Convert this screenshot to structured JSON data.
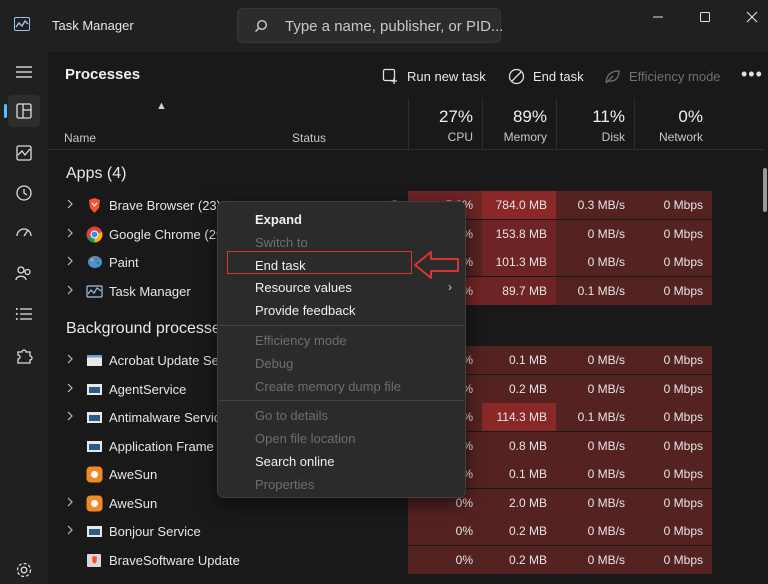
{
  "window": {
    "title": "Task Manager",
    "search_placeholder": "Type a name, publisher, or PID..."
  },
  "toolbar": {
    "page_title": "Processes",
    "run_new_task": "Run new task",
    "end_task": "End task",
    "efficiency_mode": "Efficiency mode",
    "more": "•••"
  },
  "columns": {
    "name": "Name",
    "status": "Status",
    "cpu_pct": "27%",
    "cpu_label": "CPU",
    "memory_pct": "89%",
    "memory_label": "Memory",
    "disk_pct": "11%",
    "disk_label": "Disk",
    "network_pct": "0%",
    "network_label": "Network"
  },
  "sections": {
    "apps": "Apps (4)",
    "background": "Background processes"
  },
  "apps": [
    {
      "name": "Brave Browser (23)",
      "icon": "brave-icon",
      "cpu": "5.2%",
      "memory": "784.0 MB",
      "disk": "0.3 MB/s",
      "network": "0 Mbps"
    },
    {
      "name": "Google Chrome (29)",
      "icon": "chrome-icon",
      "cpu": "2.4%",
      "memory": "153.8 MB",
      "disk": "0 MB/s",
      "network": "0 Mbps"
    },
    {
      "name": "Paint",
      "icon": "paint-icon",
      "cpu": "0.1%",
      "memory": "101.3 MB",
      "disk": "0 MB/s",
      "network": "0 Mbps"
    },
    {
      "name": "Task Manager",
      "icon": "task-manager-icon",
      "cpu": "1.9%",
      "memory": "89.7 MB",
      "disk": "0.1 MB/s",
      "network": "0 Mbps"
    }
  ],
  "background": [
    {
      "name": "Acrobat Update Service (32 bit)",
      "icon": "window-icon",
      "cpu": "0%",
      "memory": "0.1 MB",
      "disk": "0 MB/s",
      "network": "0 Mbps"
    },
    {
      "name": "AgentService",
      "icon": "window-icon",
      "cpu": "0%",
      "memory": "0.2 MB",
      "disk": "0 MB/s",
      "network": "0 Mbps"
    },
    {
      "name": "Antimalware Service Executable",
      "icon": "window-icon",
      "cpu": "0.1%",
      "memory": "114.3 MB",
      "disk": "0.1 MB/s",
      "network": "0 Mbps"
    },
    {
      "name": "Application Frame Host",
      "icon": "window-icon",
      "cpu": "0%",
      "memory": "0.8 MB",
      "disk": "0 MB/s",
      "network": "0 Mbps"
    },
    {
      "name": "AweSun",
      "icon": "awesun-icon",
      "cpu": "0%",
      "memory": "0.1 MB",
      "disk": "0 MB/s",
      "network": "0 Mbps"
    },
    {
      "name": "AweSun",
      "icon": "awesun-icon",
      "cpu": "0%",
      "memory": "2.0 MB",
      "disk": "0 MB/s",
      "network": "0 Mbps"
    },
    {
      "name": "Bonjour Service",
      "icon": "window-icon",
      "cpu": "0%",
      "memory": "0.2 MB",
      "disk": "0 MB/s",
      "network": "0 Mbps"
    },
    {
      "name": "BraveSoftware Update",
      "icon": "brave-update-icon",
      "cpu": "0%",
      "memory": "0.2 MB",
      "disk": "0 MB/s",
      "network": "0 Mbps"
    }
  ],
  "context_menu": {
    "expand": "Expand",
    "switch_to": "Switch to",
    "end_task": "End task",
    "resource_values": "Resource values",
    "provide_feedback": "Provide feedback",
    "efficiency_mode": "Efficiency mode",
    "debug": "Debug",
    "create_dump": "Create memory dump file",
    "go_to_details": "Go to details",
    "open_file_location": "Open file location",
    "search_online": "Search online",
    "properties": "Properties"
  },
  "colors": {
    "accent": "#4cc2ff",
    "highlight_red": "#d93434",
    "heat_low": "#3e1e1e",
    "heat_mid": "#552222",
    "heat_high": "#8a2828"
  }
}
